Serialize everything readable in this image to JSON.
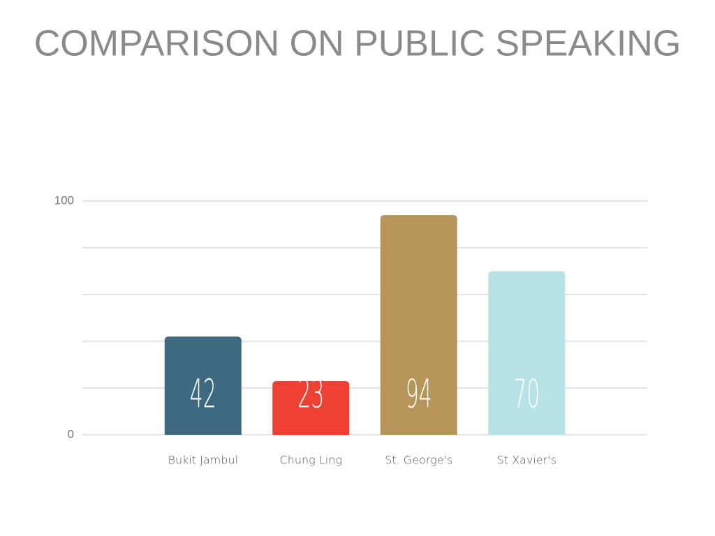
{
  "chart_data": {
    "type": "bar",
    "title": "COMPARISON ON PUBLIC SPEAKING",
    "categories": [
      "Bukit Jambul",
      "Chung Ling",
      "St. George's",
      "St Xavier's"
    ],
    "values": [
      42,
      23,
      94,
      70
    ],
    "colors": [
      "#3d6a80",
      "#f04034",
      "#b59558",
      "#b8e3e6"
    ],
    "ylim": [
      0,
      100
    ],
    "yticks": [
      0,
      100
    ],
    "minor_gridlines": [
      20,
      40,
      60,
      80
    ],
    "grid": true,
    "data_labels": true
  }
}
